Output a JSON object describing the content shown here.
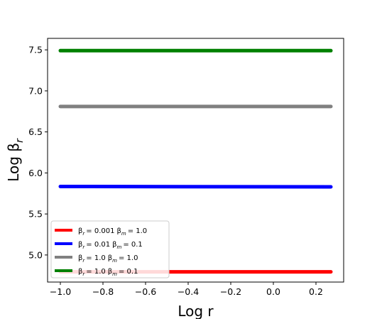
{
  "chart_data": {
    "type": "line",
    "xlabel": "Log r",
    "ylabel_base": "Log β",
    "ylabel_sub": "r",
    "xlim": [
      -1.06,
      0.33
    ],
    "ylim": [
      4.67,
      7.64
    ],
    "x_ticks": [
      {
        "value": -1.0,
        "label": "−1.0"
      },
      {
        "value": -0.8,
        "label": "−0.8"
      },
      {
        "value": -0.6,
        "label": "−0.6"
      },
      {
        "value": -0.4,
        "label": "−0.4"
      },
      {
        "value": -0.2,
        "label": "−0.2"
      },
      {
        "value": 0.0,
        "label": "0.0"
      },
      {
        "value": 0.2,
        "label": "0.2"
      }
    ],
    "y_ticks": [
      {
        "value": 5.0,
        "label": "5.0"
      },
      {
        "value": 5.5,
        "label": "5.5"
      },
      {
        "value": 6.0,
        "label": "6.0"
      },
      {
        "value": 6.5,
        "label": "6.5"
      },
      {
        "value": 7.0,
        "label": "7.0"
      },
      {
        "value": 7.5,
        "label": "7.5"
      }
    ],
    "grid": false,
    "legend_position": "lower-left",
    "series": [
      {
        "color": "#ff0000",
        "legend": {
          "b1": "β",
          "s1": "r",
          "t1": "= 0.001",
          "b2": "β",
          "s2": "m",
          "t2": "= 1.0"
        },
        "x": [
          -1.0,
          0.27
        ],
        "y": [
          4.795,
          4.795
        ]
      },
      {
        "color": "#0000ff",
        "legend": {
          "b1": "β",
          "s1": "r",
          "t1": "= 0.01",
          "b2": "β",
          "s2": "m",
          "t2": "= 0.1"
        },
        "x": [
          -1.0,
          0.27
        ],
        "y": [
          5.835,
          5.83
        ]
      },
      {
        "color": "#808080",
        "legend": {
          "b1": "β",
          "s1": "r",
          "t1": "= 1.0",
          "b2": "β",
          "s2": "m",
          "t2": "= 1.0"
        },
        "x": [
          -1.0,
          0.27
        ],
        "y": [
          6.81,
          6.81
        ]
      },
      {
        "color": "#008000",
        "legend": {
          "b1": "β",
          "s1": "r",
          "t1": "= 1.0",
          "b2": "β",
          "s2": "m",
          "t2": "= 0.1"
        },
        "x": [
          -1.0,
          0.27
        ],
        "y": [
          7.49,
          7.49
        ]
      }
    ]
  }
}
